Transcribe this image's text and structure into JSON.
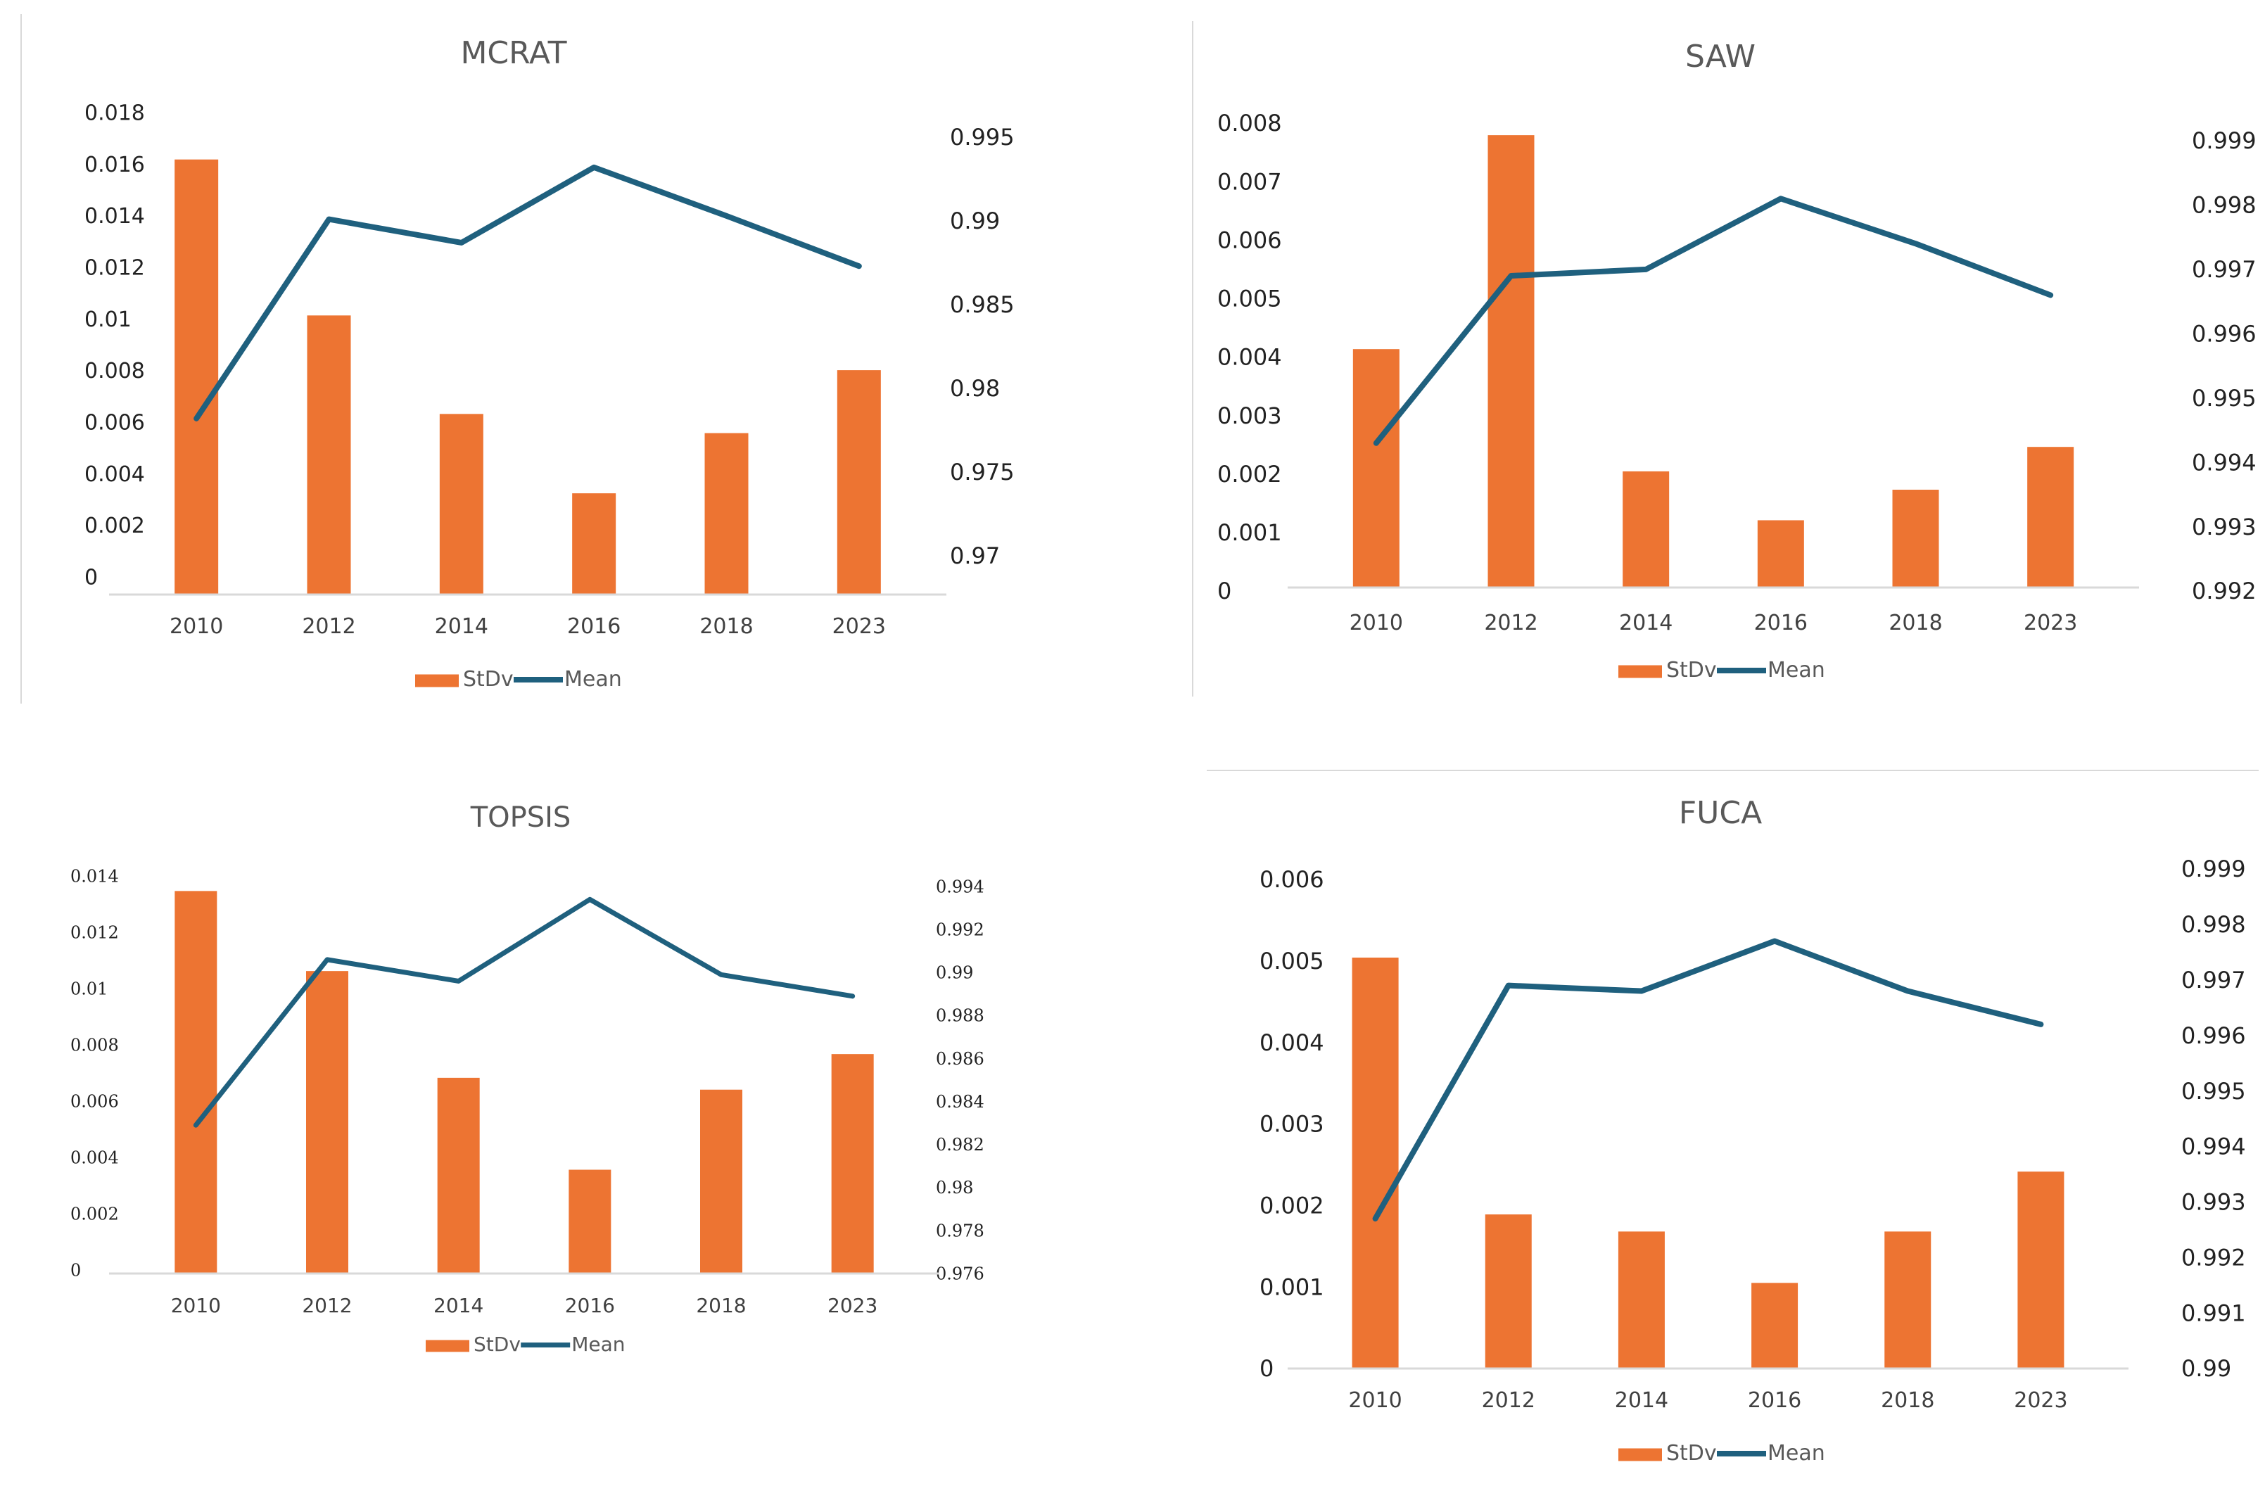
{
  "colors": {
    "bar": "#ED7432",
    "line": "#1F607E",
    "axis": "#D9D9D9",
    "frame": "#D9D9D9"
  },
  "chart_data": [
    {
      "id": "mcrat",
      "type": "bar+line",
      "title": "MCRAT",
      "categories": [
        "2010",
        "2012",
        "2014",
        "2016",
        "2018",
        "2023"
      ],
      "series": [
        {
          "name": "StDv",
          "axis": "left",
          "kind": "bar",
          "values": [
            0.0159,
            0.0102,
            0.0066,
            0.0037,
            0.0059,
            0.0082
          ]
        },
        {
          "name": "Mean",
          "axis": "right",
          "kind": "line",
          "values": [
            0.9782,
            0.9901,
            0.9887,
            0.9932,
            0.9903,
            0.9873
          ]
        }
      ],
      "y_left": {
        "ticks": [
          "0",
          "0.002",
          "0.004",
          "0.006",
          "0.008",
          "0.01",
          "0.012",
          "0.014",
          "0.016",
          "0.018"
        ],
        "min": 0,
        "max": 0.018
      },
      "y_right": {
        "ticks": [
          "0.97",
          "0.975",
          "0.98",
          "0.985",
          "0.99",
          "0.995"
        ],
        "min": 0.97,
        "max": 0.995
      },
      "legend": [
        "StDv",
        "Mean"
      ]
    },
    {
      "id": "saw",
      "type": "bar+line",
      "title": "SAW",
      "categories": [
        "2010",
        "2012",
        "2014",
        "2016",
        "2018",
        "2023"
      ],
      "series": [
        {
          "name": "StDv",
          "axis": "left",
          "kind": "bar",
          "values": [
            0.0039,
            0.0074,
            0.0019,
            0.0011,
            0.0016,
            0.0023
          ]
        },
        {
          "name": "Mean",
          "axis": "right",
          "kind": "line",
          "values": [
            0.9943,
            0.9969,
            0.997,
            0.9981,
            0.9974,
            0.9966
          ]
        }
      ],
      "y_left": {
        "ticks": [
          "0",
          "0.001",
          "0.002",
          "0.003",
          "0.004",
          "0.005",
          "0.006",
          "0.007",
          "0.008"
        ],
        "min": 0,
        "max": 0.008
      },
      "y_right": {
        "ticks": [
          "0.992",
          "0.993",
          "0.994",
          "0.995",
          "0.996",
          "0.997",
          "0.998",
          "0.999"
        ],
        "min": 0.992,
        "max": 0.999
      },
      "legend": [
        "StDv",
        "Mean"
      ]
    },
    {
      "id": "topsis",
      "type": "bar+line",
      "title": "TOPSIS",
      "categories": [
        "2010",
        "2012",
        "2014",
        "2016",
        "2018",
        "2023"
      ],
      "series": [
        {
          "name": "StDv",
          "axis": "left",
          "kind": "bar",
          "values": [
            0.0129,
            0.0102,
            0.0066,
            0.0035,
            0.0062,
            0.0074
          ]
        },
        {
          "name": "Mean",
          "axis": "right",
          "kind": "line",
          "values": [
            0.9829,
            0.9906,
            0.9896,
            0.9934,
            0.9899,
            0.9889
          ]
        }
      ],
      "y_left": {
        "ticks": [
          "0",
          "0.002",
          "0.004",
          "0.006",
          "0.008",
          "0.01",
          "0.012",
          "0.014"
        ],
        "min": 0,
        "max": 0.014
      },
      "y_right": {
        "ticks": [
          "0.976",
          "0.978",
          "0.98",
          "0.982",
          "0.984",
          "0.986",
          "0.988",
          "0.99",
          "0.992",
          "0.994"
        ],
        "min": 0.976,
        "max": 0.994
      },
      "legend": [
        "StDv",
        "Mean"
      ]
    },
    {
      "id": "fuca",
      "type": "bar+line",
      "title": "FUCA",
      "categories": [
        "2010",
        "2012",
        "2014",
        "2016",
        "2018",
        "2023"
      ],
      "series": [
        {
          "name": "StDv",
          "axis": "left",
          "kind": "bar",
          "values": [
            0.0048,
            0.0018,
            0.0016,
            0.001,
            0.0016,
            0.0023
          ]
        },
        {
          "name": "Mean",
          "axis": "right",
          "kind": "line",
          "values": [
            0.9927,
            0.9969,
            0.9968,
            0.9977,
            0.9968,
            0.9962
          ]
        }
      ],
      "y_left": {
        "ticks": [
          "0",
          "0.001",
          "0.002",
          "0.003",
          "0.004",
          "0.005",
          "0.006"
        ],
        "min": 0,
        "max": 0.006
      },
      "y_right": {
        "ticks": [
          "0.99",
          "0.991",
          "0.992",
          "0.993",
          "0.994",
          "0.995",
          "0.996",
          "0.997",
          "0.998",
          "0.999"
        ],
        "min": 0.99,
        "max": 0.999
      },
      "legend": [
        "StDv",
        "Mean"
      ]
    }
  ]
}
